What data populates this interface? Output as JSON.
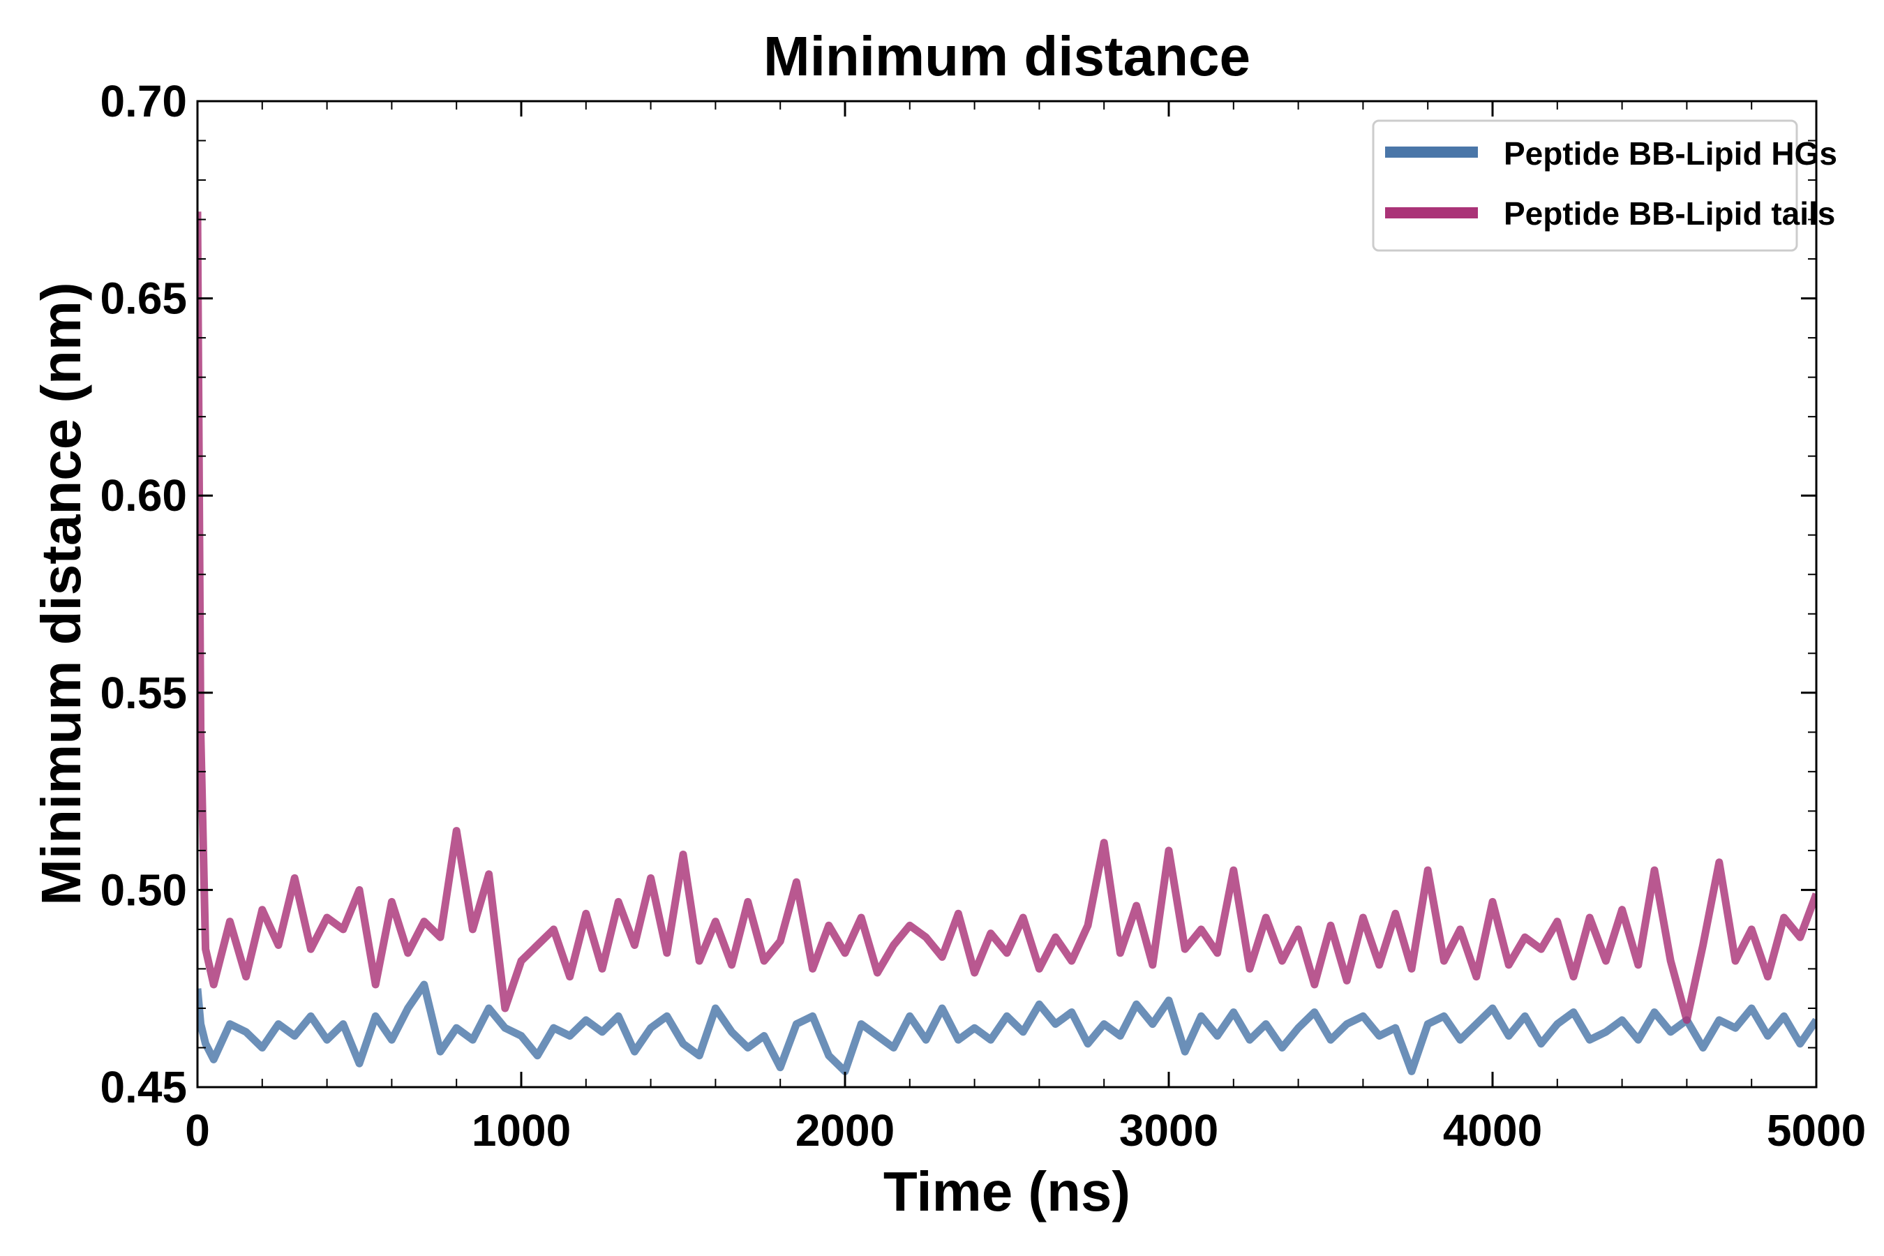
{
  "chart_data": {
    "type": "line",
    "title": "Minimum distance",
    "xlabel": "Time (ns)",
    "ylabel": "Minimum distance (nm)",
    "xlim": [
      0,
      5000
    ],
    "ylim": [
      0.45,
      0.7
    ],
    "xticks": [
      "0",
      "1000",
      "2000",
      "3000",
      "4000",
      "5000"
    ],
    "yticks": [
      "0.45",
      "0.50",
      "0.55",
      "0.60",
      "0.65",
      "0.70"
    ],
    "grid": false,
    "legend_position": "top-right",
    "series": [
      {
        "name": "Peptide BB-Lipid HGs",
        "color": "#4a76a8",
        "x": [
          0,
          10,
          25,
          50,
          100,
          150,
          200,
          250,
          300,
          350,
          400,
          450,
          500,
          550,
          600,
          650,
          700,
          750,
          800,
          850,
          900,
          950,
          1000,
          1050,
          1100,
          1150,
          1200,
          1250,
          1300,
          1350,
          1400,
          1450,
          1500,
          1550,
          1600,
          1650,
          1700,
          1750,
          1800,
          1850,
          1900,
          1950,
          2000,
          2050,
          2100,
          2150,
          2200,
          2250,
          2300,
          2350,
          2400,
          2450,
          2500,
          2550,
          2600,
          2650,
          2700,
          2750,
          2800,
          2850,
          2900,
          2950,
          3000,
          3050,
          3100,
          3150,
          3200,
          3250,
          3300,
          3350,
          3400,
          3450,
          3500,
          3550,
          3600,
          3650,
          3700,
          3750,
          3800,
          3850,
          3900,
          3950,
          4000,
          4050,
          4100,
          4150,
          4200,
          4250,
          4300,
          4350,
          4400,
          4450,
          4500,
          4550,
          4600,
          4650,
          4700,
          4750,
          4800,
          4850,
          4900,
          4950,
          5000
        ],
        "values": [
          0.475,
          0.466,
          0.461,
          0.457,
          0.466,
          0.464,
          0.46,
          0.466,
          0.463,
          0.468,
          0.462,
          0.466,
          0.456,
          0.468,
          0.462,
          0.47,
          0.476,
          0.459,
          0.465,
          0.462,
          0.47,
          0.465,
          0.463,
          0.458,
          0.465,
          0.463,
          0.467,
          0.464,
          0.468,
          0.459,
          0.465,
          0.468,
          0.461,
          0.458,
          0.47,
          0.464,
          0.46,
          0.463,
          0.455,
          0.466,
          0.468,
          0.458,
          0.454,
          0.466,
          0.463,
          0.46,
          0.468,
          0.462,
          0.47,
          0.462,
          0.465,
          0.462,
          0.468,
          0.464,
          0.471,
          0.466,
          0.469,
          0.461,
          0.466,
          0.463,
          0.471,
          0.466,
          0.472,
          0.459,
          0.468,
          0.463,
          0.469,
          0.462,
          0.466,
          0.46,
          0.465,
          0.469,
          0.462,
          0.466,
          0.468,
          0.463,
          0.465,
          0.454,
          0.466,
          0.468,
          0.462,
          0.466,
          0.47,
          0.463,
          0.468,
          0.461,
          0.466,
          0.469,
          0.462,
          0.464,
          0.467,
          0.462,
          0.469,
          0.464,
          0.467,
          0.46,
          0.467,
          0.465,
          0.47,
          0.463,
          0.468,
          0.461,
          0.467
        ]
      },
      {
        "name": "Peptide BB-Lipid tails",
        "color": "#aa3377",
        "x": [
          0,
          10,
          25,
          50,
          100,
          150,
          200,
          250,
          300,
          350,
          400,
          450,
          500,
          550,
          600,
          650,
          700,
          750,
          800,
          850,
          900,
          950,
          1000,
          1050,
          1100,
          1150,
          1200,
          1250,
          1300,
          1350,
          1400,
          1450,
          1500,
          1550,
          1600,
          1650,
          1700,
          1750,
          1800,
          1850,
          1900,
          1950,
          2000,
          2050,
          2100,
          2150,
          2200,
          2250,
          2300,
          2350,
          2400,
          2450,
          2500,
          2550,
          2600,
          2650,
          2700,
          2750,
          2800,
          2850,
          2900,
          2950,
          3000,
          3050,
          3100,
          3150,
          3200,
          3250,
          3300,
          3350,
          3400,
          3450,
          3500,
          3550,
          3600,
          3650,
          3700,
          3750,
          3800,
          3850,
          3900,
          3950,
          4000,
          4050,
          4100,
          4150,
          4200,
          4250,
          4300,
          4350,
          4400,
          4450,
          4500,
          4550,
          4600,
          4650,
          4700,
          4750,
          4800,
          4850,
          4900,
          4950,
          5000
        ],
        "values": [
          0.672,
          0.54,
          0.485,
          0.476,
          0.492,
          0.478,
          0.495,
          0.486,
          0.503,
          0.485,
          0.493,
          0.49,
          0.5,
          0.476,
          0.497,
          0.484,
          0.492,
          0.488,
          0.515,
          0.49,
          0.504,
          0.47,
          0.482,
          0.486,
          0.49,
          0.478,
          0.494,
          0.48,
          0.497,
          0.486,
          0.503,
          0.484,
          0.509,
          0.482,
          0.492,
          0.481,
          0.497,
          0.482,
          0.487,
          0.502,
          0.48,
          0.491,
          0.484,
          0.493,
          0.479,
          0.486,
          0.491,
          0.488,
          0.483,
          0.494,
          0.479,
          0.489,
          0.484,
          0.493,
          0.48,
          0.488,
          0.482,
          0.491,
          0.512,
          0.484,
          0.496,
          0.481,
          0.51,
          0.485,
          0.49,
          0.484,
          0.505,
          0.48,
          0.493,
          0.482,
          0.49,
          0.476,
          0.491,
          0.477,
          0.493,
          0.481,
          0.494,
          0.48,
          0.505,
          0.482,
          0.49,
          0.478,
          0.497,
          0.481,
          0.488,
          0.485,
          0.492,
          0.478,
          0.493,
          0.482,
          0.495,
          0.481,
          0.505,
          0.482,
          0.467,
          0.486,
          0.507,
          0.482,
          0.49,
          0.478,
          0.493,
          0.488,
          0.499
        ]
      }
    ]
  }
}
